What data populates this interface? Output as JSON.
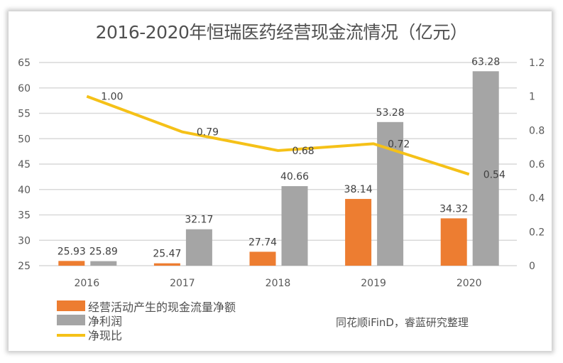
{
  "chart_data": {
    "type": "bar+line",
    "title": "2016-2020年恒瑞医药经营现金流情况（亿元）",
    "categories": [
      "2016",
      "2017",
      "2018",
      "2019",
      "2020"
    ],
    "series": [
      {
        "name": "经营活动产生的现金流量净额",
        "type": "bar",
        "axis": "left",
        "color": "#ED7D31",
        "values": [
          25.93,
          25.47,
          27.74,
          38.14,
          34.32
        ],
        "labels": [
          "25.93",
          "25.47",
          "27.74",
          "38.14",
          "34.32"
        ]
      },
      {
        "name": "净利润",
        "type": "bar",
        "axis": "left",
        "color": "#A5A5A5",
        "values": [
          25.89,
          32.17,
          40.66,
          53.28,
          63.28
        ],
        "labels": [
          "25.89",
          "32.17",
          "40.66",
          "53.28",
          "63.28"
        ]
      },
      {
        "name": "净现比",
        "type": "line",
        "axis": "right",
        "color": "#F5C118",
        "values": [
          1.0,
          0.79,
          0.68,
          0.72,
          0.54
        ],
        "labels": [
          "1.00",
          "0.79",
          "0.68",
          "0.72",
          "0.54"
        ]
      }
    ],
    "ylim_left": [
      25,
      65
    ],
    "yticks_left": [
      "25",
      "30",
      "35",
      "40",
      "45",
      "50",
      "55",
      "60",
      "65"
    ],
    "ylim_right": [
      0,
      1.2
    ],
    "yticks_right": [
      "0",
      "0.2",
      "0.4",
      "0.6",
      "0.8",
      "1",
      "1.2"
    ],
    "grid": true,
    "legend_position": "bottom-left"
  },
  "source": "同花顺iFinD，睿蓝研究整理"
}
